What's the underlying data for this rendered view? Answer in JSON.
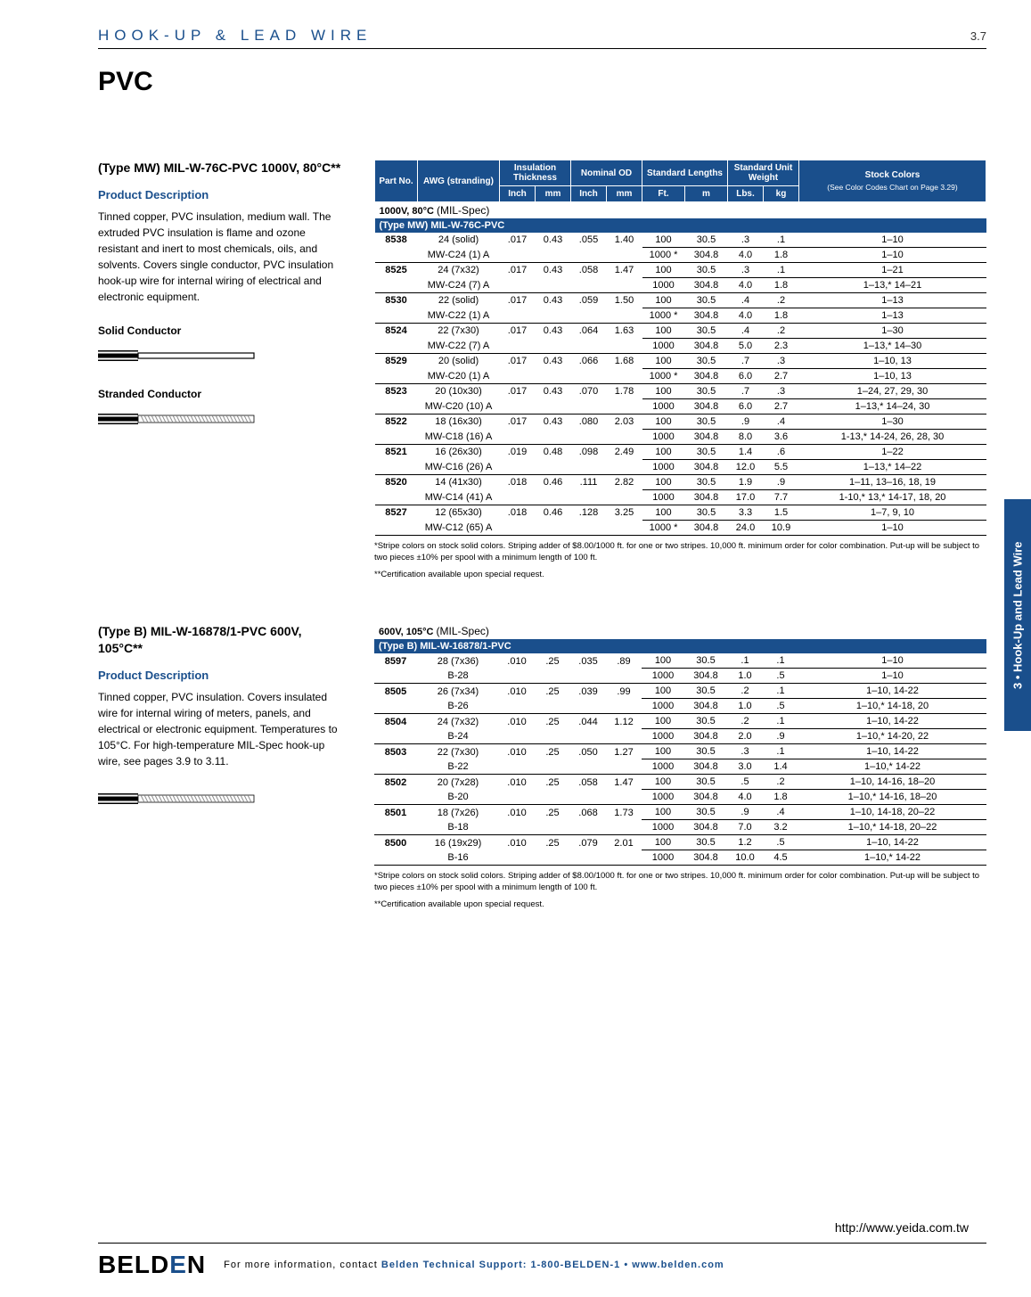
{
  "header": {
    "breadcrumb": "HOOK-UP & LEAD WIRE",
    "page_num": "3.7"
  },
  "title": "PVC",
  "side_tab": "3 • Hook-Up and Lead Wire",
  "url": "http://www.yeida.com.tw",
  "footer": {
    "logo_pre": "BELD",
    "logo_mid": "E",
    "logo_post": "N",
    "text_pre": "For more information, contact ",
    "text_mid": "Belden Technical Support: ",
    "phone": "1-800-BELDEN-1",
    "sep": " • ",
    "site": "www.belden.com"
  },
  "table_headers": {
    "part": "Part No.",
    "awg": "AWG (stranding)",
    "insul": "Insulation Thickness",
    "nom": "Nominal OD",
    "std_len": "Standard Lengths",
    "std_wt": "Standard Unit Weight",
    "stock": "Stock Colors",
    "stock_sub": "(See Color Codes Chart on Page 3.29)",
    "inch": "Inch",
    "mm": "mm",
    "ft": "Ft.",
    "m": "m",
    "lbs": "Lbs.",
    "kg": "kg"
  },
  "section1": {
    "title": "(Type MW) MIL-W-76C-PVC 1000V, 80°C**",
    "pd_heading": "Product Description",
    "pd_text": "Tinned copper, PVC insulation, medium wall. The extruded PVC insulation is flame and ozone resistant and inert to most chemicals, oils, and solvents. Covers single conductor, PVC insulation hook-up wire for internal wiring of electrical and electronic equipment.",
    "label_solid": "Solid Conductor",
    "label_stranded": "Stranded Conductor",
    "spec_label_a": "1000V, 80°C ",
    "spec_label_b": "(MIL-Spec)",
    "banner": "(Type MW) MIL-W-76C-PVC",
    "rows": [
      {
        "part": "8538",
        "awg": "24 (solid)",
        "mil": "MW-C24 (1) A",
        "in": ".017",
        "mm1": "0.43",
        "in2": ".055",
        "mm2": "1.40",
        "l1": {
          "ft": "100",
          "m": "30.5",
          "lbs": ".3",
          "kg": ".1",
          "stock": "1–10"
        },
        "l2": {
          "ft": "1000 *",
          "m": "304.8",
          "lbs": "4.0",
          "kg": "1.8",
          "stock": "1–10"
        }
      },
      {
        "part": "8525",
        "awg": "24 (7x32)",
        "mil": "MW-C24 (7) A",
        "in": ".017",
        "mm1": "0.43",
        "in2": ".058",
        "mm2": "1.47",
        "l1": {
          "ft": "100",
          "m": "30.5",
          "lbs": ".3",
          "kg": ".1",
          "stock": "1–21"
        },
        "l2": {
          "ft": "1000",
          "m": "304.8",
          "lbs": "4.0",
          "kg": "1.8",
          "stock": "1–13,* 14–21"
        }
      },
      {
        "part": "8530",
        "awg": "22 (solid)",
        "mil": "MW-C22 (1) A",
        "in": ".017",
        "mm1": "0.43",
        "in2": ".059",
        "mm2": "1.50",
        "l1": {
          "ft": "100",
          "m": "30.5",
          "lbs": ".4",
          "kg": ".2",
          "stock": "1–13"
        },
        "l2": {
          "ft": "1000 *",
          "m": "304.8",
          "lbs": "4.0",
          "kg": "1.8",
          "stock": "1–13"
        }
      },
      {
        "part": "8524",
        "awg": "22 (7x30)",
        "mil": "MW-C22 (7) A",
        "in": ".017",
        "mm1": "0.43",
        "in2": ".064",
        "mm2": "1.63",
        "l1": {
          "ft": "100",
          "m": "30.5",
          "lbs": ".4",
          "kg": ".2",
          "stock": "1–30"
        },
        "l2": {
          "ft": "1000",
          "m": "304.8",
          "lbs": "5.0",
          "kg": "2.3",
          "stock": "1–13,* 14–30"
        }
      },
      {
        "part": "8529",
        "awg": "20 (solid)",
        "mil": "MW-C20 (1) A",
        "in": ".017",
        "mm1": "0.43",
        "in2": ".066",
        "mm2": "1.68",
        "l1": {
          "ft": "100",
          "m": "30.5",
          "lbs": ".7",
          "kg": ".3",
          "stock": "1–10, 13"
        },
        "l2": {
          "ft": "1000 *",
          "m": "304.8",
          "lbs": "6.0",
          "kg": "2.7",
          "stock": "1–10, 13"
        }
      },
      {
        "part": "8523",
        "awg": "20 (10x30)",
        "mil": "MW-C20 (10) A",
        "in": ".017",
        "mm1": "0.43",
        "in2": ".070",
        "mm2": "1.78",
        "l1": {
          "ft": "100",
          "m": "30.5",
          "lbs": ".7",
          "kg": ".3",
          "stock": "1–24, 27, 29, 30"
        },
        "l2": {
          "ft": "1000",
          "m": "304.8",
          "lbs": "6.0",
          "kg": "2.7",
          "stock": "1–13,* 14–24, 30"
        }
      },
      {
        "part": "8522",
        "awg": "18 (16x30)",
        "mil": "MW-C18 (16) A",
        "in": ".017",
        "mm1": "0.43",
        "in2": ".080",
        "mm2": "2.03",
        "l1": {
          "ft": "100",
          "m": "30.5",
          "lbs": ".9",
          "kg": ".4",
          "stock": "1–30"
        },
        "l2": {
          "ft": "1000",
          "m": "304.8",
          "lbs": "8.0",
          "kg": "3.6",
          "stock": "1-13,* 14-24, 26, 28, 30"
        }
      },
      {
        "part": "8521",
        "awg": "16 (26x30)",
        "mil": "MW-C16 (26) A",
        "in": ".019",
        "mm1": "0.48",
        "in2": ".098",
        "mm2": "2.49",
        "l1": {
          "ft": "100",
          "m": "30.5",
          "lbs": "1.4",
          "kg": ".6",
          "stock": "1–22"
        },
        "l2": {
          "ft": "1000",
          "m": "304.8",
          "lbs": "12.0",
          "kg": "5.5",
          "stock": "1–13,* 14–22"
        }
      },
      {
        "part": "8520",
        "awg": "14 (41x30)",
        "mil": "MW-C14 (41) A",
        "in": ".018",
        "mm1": "0.46",
        "in2": ".111",
        "mm2": "2.82",
        "l1": {
          "ft": "100",
          "m": "30.5",
          "lbs": "1.9",
          "kg": ".9",
          "stock": "1–11, 13–16, 18, 19"
        },
        "l2": {
          "ft": "1000",
          "m": "304.8",
          "lbs": "17.0",
          "kg": "7.7",
          "stock": "1-10,* 13,* 14-17, 18, 20"
        }
      },
      {
        "part": "8527",
        "awg": "12 (65x30)",
        "mil": "MW-C12 (65) A",
        "in": ".018",
        "mm1": "0.46",
        "in2": ".128",
        "mm2": "3.25",
        "l1": {
          "ft": "100",
          "m": "30.5",
          "lbs": "3.3",
          "kg": "1.5",
          "stock": "1–7, 9, 10"
        },
        "l2": {
          "ft": "1000 *",
          "m": "304.8",
          "lbs": "24.0",
          "kg": "10.9",
          "stock": "1–10"
        }
      }
    ],
    "footnote1": "*Stripe colors on stock solid colors. Striping adder of $8.00/1000 ft. for one or two stripes. 10,000 ft. minimum order for color combination. Put-up will be subject to two pieces ±10% per spool with a minimum length of 100 ft.",
    "footnote2": "**Certification available upon special request."
  },
  "section2": {
    "title": "(Type B) MIL-W-16878/1-PVC 600V, 105°C**",
    "pd_heading": "Product Description",
    "pd_text": "Tinned copper, PVC insulation. Covers insulated wire for internal wiring of meters, panels, and electrical or electronic equipment. Temperatures to 105°C. For high-temperature MIL-Spec hook-up wire, see pages 3.9 to 3.11.",
    "spec_label_a": "600V, 105°C ",
    "spec_label_b": "(MIL-Spec)",
    "banner": "(Type B) MIL-W-16878/1-PVC",
    "rows": [
      {
        "part": "8597",
        "awg": "28 (7x36)",
        "mil": "B-28",
        "in": ".010",
        "mm1": ".25",
        "in2": ".035",
        "mm2": ".89",
        "l1": {
          "ft": "100",
          "m": "30.5",
          "lbs": ".1",
          "kg": ".1",
          "stock": "1–10"
        },
        "l2": {
          "ft": "1000",
          "m": "304.8",
          "lbs": "1.0",
          "kg": ".5",
          "stock": "1–10"
        }
      },
      {
        "part": "8505",
        "awg": "26 (7x34)",
        "mil": "B-26",
        "in": ".010",
        "mm1": ".25",
        "in2": ".039",
        "mm2": ".99",
        "l1": {
          "ft": "100",
          "m": "30.5",
          "lbs": ".2",
          "kg": ".1",
          "stock": "1–10, 14-22"
        },
        "l2": {
          "ft": "1000",
          "m": "304.8",
          "lbs": "1.0",
          "kg": ".5",
          "stock": "1–10,* 14-18, 20"
        }
      },
      {
        "part": "8504",
        "awg": "24 (7x32)",
        "mil": "B-24",
        "in": ".010",
        "mm1": ".25",
        "in2": ".044",
        "mm2": "1.12",
        "l1": {
          "ft": "100",
          "m": "30.5",
          "lbs": ".2",
          "kg": ".1",
          "stock": "1–10, 14-22"
        },
        "l2": {
          "ft": "1000",
          "m": "304.8",
          "lbs": "2.0",
          "kg": ".9",
          "stock": "1–10,* 14-20, 22"
        }
      },
      {
        "part": "8503",
        "awg": "22 (7x30)",
        "mil": "B-22",
        "in": ".010",
        "mm1": ".25",
        "in2": ".050",
        "mm2": "1.27",
        "l1": {
          "ft": "100",
          "m": "30.5",
          "lbs": ".3",
          "kg": ".1",
          "stock": "1–10, 14-22"
        },
        "l2": {
          "ft": "1000",
          "m": "304.8",
          "lbs": "3.0",
          "kg": "1.4",
          "stock": "1–10,* 14-22"
        }
      },
      {
        "part": "8502",
        "awg": "20 (7x28)",
        "mil": "B-20",
        "in": ".010",
        "mm1": ".25",
        "in2": ".058",
        "mm2": "1.47",
        "l1": {
          "ft": "100",
          "m": "30.5",
          "lbs": ".5",
          "kg": ".2",
          "stock": "1–10, 14-16, 18–20"
        },
        "l2": {
          "ft": "1000",
          "m": "304.8",
          "lbs": "4.0",
          "kg": "1.8",
          "stock": "1–10,* 14-16, 18–20"
        }
      },
      {
        "part": "8501",
        "awg": "18 (7x26)",
        "mil": "B-18",
        "in": ".010",
        "mm1": ".25",
        "in2": ".068",
        "mm2": "1.73",
        "l1": {
          "ft": "100",
          "m": "30.5",
          "lbs": ".9",
          "kg": ".4",
          "stock": "1–10, 14-18, 20–22"
        },
        "l2": {
          "ft": "1000",
          "m": "304.8",
          "lbs": "7.0",
          "kg": "3.2",
          "stock": "1–10,* 14-18, 20–22"
        }
      },
      {
        "part": "8500",
        "awg": "16 (19x29)",
        "mil": "B-16",
        "in": ".010",
        "mm1": ".25",
        "in2": ".079",
        "mm2": "2.01",
        "l1": {
          "ft": "100",
          "m": "30.5",
          "lbs": "1.2",
          "kg": ".5",
          "stock": "1–10, 14-22"
        },
        "l2": {
          "ft": "1000",
          "m": "304.8",
          "lbs": "10.0",
          "kg": "4.5",
          "stock": "1–10,* 14-22"
        }
      }
    ],
    "footnote1": "*Stripe colors on stock solid colors. Striping adder of $8.00/1000 ft. for one or two stripes. 10,000 ft. minimum order for color combination. Put-up will be subject to two pieces ±10% per spool with a minimum length of 100 ft.",
    "footnote2": "**Certification available upon special request."
  }
}
